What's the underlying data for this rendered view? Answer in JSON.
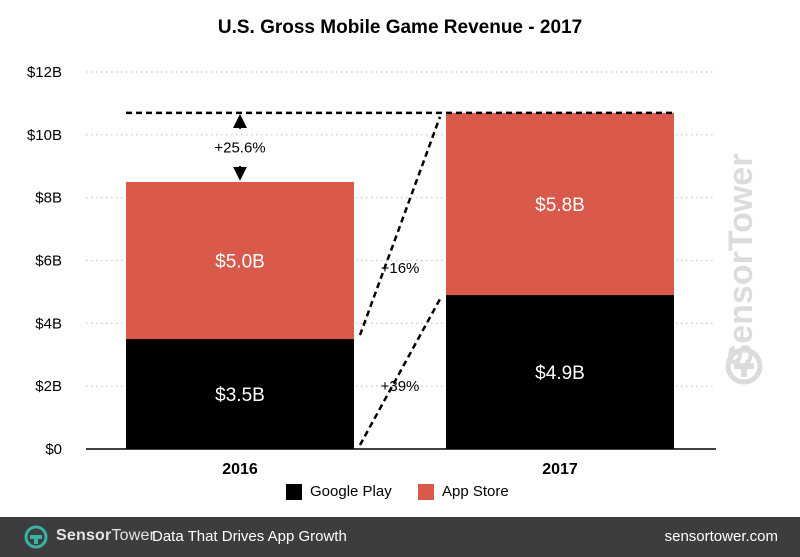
{
  "chart_data": {
    "type": "bar",
    "stacked": true,
    "title": "U.S. Gross Mobile Game Revenue - 2017",
    "categories": [
      "2016",
      "2017"
    ],
    "series": [
      {
        "name": "Google Play",
        "color": "#000000",
        "values": [
          3.5,
          4.9
        ],
        "labels": [
          "$3.5B",
          "$4.9B"
        ]
      },
      {
        "name": "App Store",
        "color": "#d9594b",
        "values": [
          5.0,
          5.8
        ],
        "labels": [
          "$5.0B",
          "$5.8B"
        ]
      }
    ],
    "ylim": [
      0,
      12
    ],
    "yticks": [
      0,
      2,
      4,
      6,
      8,
      10,
      12
    ],
    "ytick_labels": [
      "$0",
      "$2B",
      "$4B",
      "$6B",
      "$8B",
      "$10B",
      "$12B"
    ],
    "grid": true,
    "legend_position": "bottom",
    "annotations": {
      "total_growth": "+25.6%",
      "app_store_growth": "+16%",
      "google_play_growth": "+39%"
    }
  },
  "watermark": "SensorTower",
  "footer": {
    "brand_sensor": "Sensor",
    "brand_tower": "Tower",
    "tagline": "Data That Drives App Growth",
    "site": "sensortower.com"
  }
}
